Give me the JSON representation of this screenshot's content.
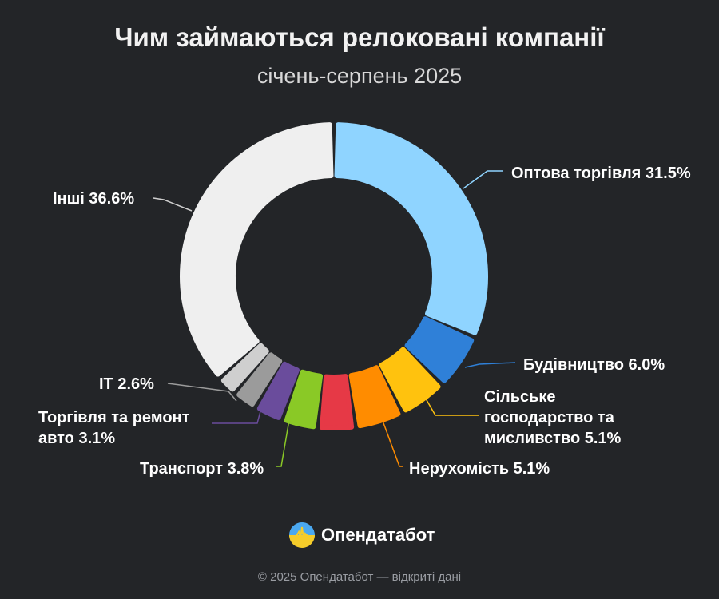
{
  "chart_data": {
    "type": "pie",
    "donut": true,
    "title": "Чим займаються релоковані компанії",
    "subtitle": "січень-серпень 2025",
    "unit": "%",
    "slices": [
      {
        "label": "Оптова торгівля",
        "value": 31.5,
        "display": "Оптова торгівля 31.5%",
        "color": "#8fd4ff"
      },
      {
        "label": "Будівництво",
        "value": 6.0,
        "display": "Будівництво 6.0%",
        "color": "#2f80d8"
      },
      {
        "label": "Сільське господарство та мисливство",
        "value": 5.1,
        "display": "Сільське господарство та мисливство 5.1%",
        "color": "#ffc20e"
      },
      {
        "label": "Нерухомість",
        "value": 5.1,
        "display": "Нерухомість 5.1%",
        "color": "#ff8c00"
      },
      {
        "label": "",
        "value": 4.0,
        "display": "",
        "color": "#e63946"
      },
      {
        "label": "Транспорт",
        "value": 3.8,
        "display": "Транспорт 3.8%",
        "color": "#8ac926"
      },
      {
        "label": "Торгівля та ремонт авто",
        "value": 3.1,
        "display": "Торгівля та ремонт авто 3.1%",
        "color": "#6a4c9c"
      },
      {
        "label": "IT",
        "value": 2.6,
        "display": "IT 2.6%",
        "color": "#9b9b9b"
      },
      {
        "label": "",
        "value": 2.2,
        "display": "",
        "color": "#cfcfcf"
      },
      {
        "label": "Інші",
        "value": 36.6,
        "display": "Інші 36.6%",
        "color": "#efefef"
      }
    ]
  },
  "brand": {
    "name": "Опендатабот",
    "logo_icon": "opendatabot-logo-icon"
  },
  "footer": "© 2025 Опендатабот — відкриті дані"
}
